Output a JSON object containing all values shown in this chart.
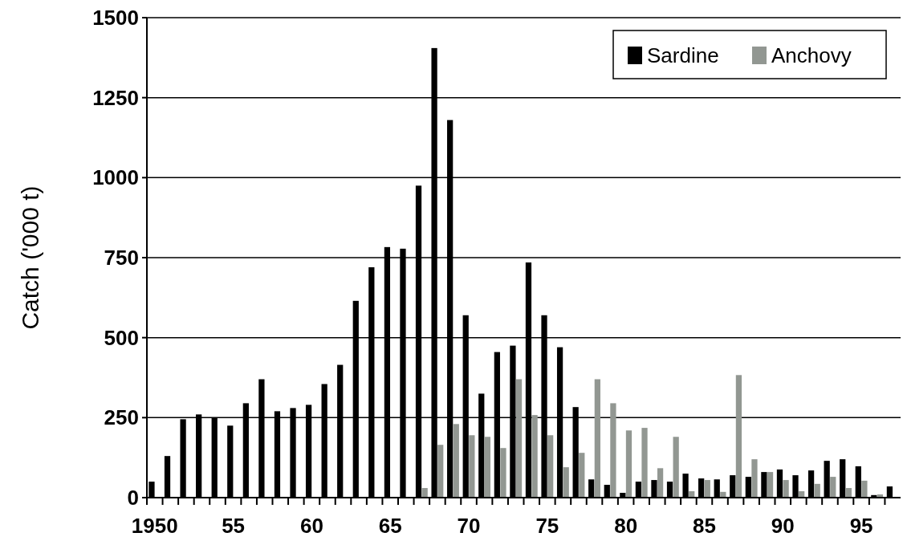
{
  "chart_data": {
    "type": "bar",
    "ylabel": "Catch ('000 t)",
    "categories": [
      "1950",
      null,
      null,
      null,
      null,
      "55",
      null,
      null,
      null,
      null,
      "60",
      null,
      null,
      null,
      null,
      "65",
      null,
      null,
      null,
      null,
      "70",
      null,
      null,
      null,
      null,
      "75",
      null,
      null,
      null,
      null,
      "80",
      null,
      null,
      null,
      null,
      "85",
      null,
      null,
      null,
      null,
      "90",
      null,
      null,
      null,
      null,
      "95",
      null,
      null
    ],
    "series": [
      {
        "name": "Sardine",
        "color": "#000000",
        "values": [
          50,
          130,
          245,
          260,
          250,
          225,
          295,
          370,
          270,
          280,
          290,
          355,
          415,
          615,
          720,
          783,
          778,
          975,
          1405,
          1180,
          570,
          325,
          455,
          475,
          735,
          570,
          470,
          283,
          57,
          40,
          15,
          50,
          55,
          50,
          75,
          60,
          57,
          70,
          65,
          80,
          88,
          70,
          85,
          115,
          120,
          98,
          8,
          35
        ]
      },
      {
        "name": "Anchovy",
        "color": "#929792",
        "values": [
          0,
          0,
          0,
          0,
          0,
          0,
          0,
          0,
          0,
          0,
          0,
          0,
          0,
          0,
          0,
          0,
          0,
          30,
          165,
          230,
          195,
          190,
          155,
          370,
          258,
          195,
          95,
          140,
          370,
          295,
          210,
          218,
          92,
          190,
          20,
          55,
          18,
          383,
          120,
          80,
          55,
          20,
          43,
          65,
          30,
          53,
          10,
          0
        ]
      }
    ],
    "ylim": [
      0,
      1500
    ],
    "yticks": [
      0,
      250,
      500,
      750,
      1000,
      1250,
      1500
    ],
    "grid": "y",
    "legend": "top right"
  }
}
